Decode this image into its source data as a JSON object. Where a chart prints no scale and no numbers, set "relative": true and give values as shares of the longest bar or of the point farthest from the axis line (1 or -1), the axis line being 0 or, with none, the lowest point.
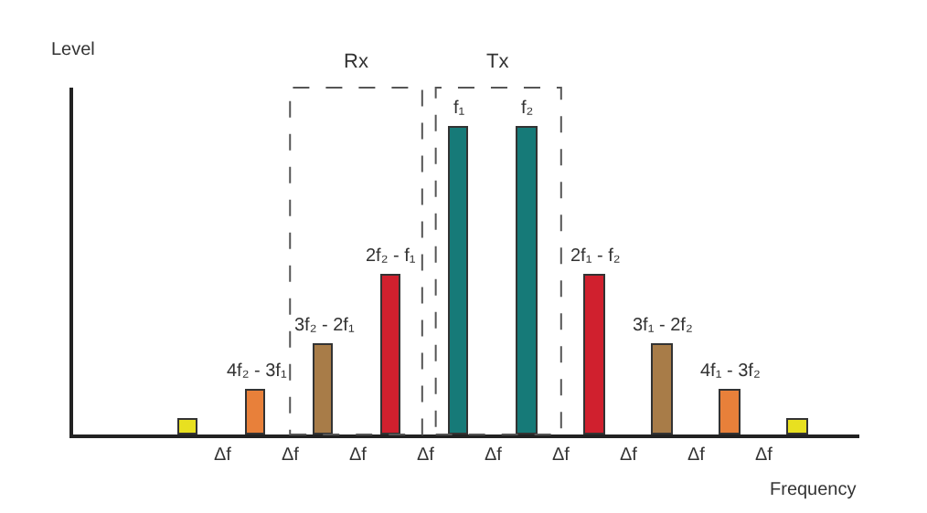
{
  "chart_data": {
    "type": "bar",
    "relative": true,
    "xlabel": "Frequency",
    "ylabel": "Level",
    "categories": [
      null,
      "4f₂ - 3f₁",
      "3f₂ - 2f₁",
      "2f₂ - f₁",
      "f₁",
      "f₂",
      "2f₁ - f₂",
      "3f₁ - 2f₂",
      "4f₁ - 3f₂",
      null
    ],
    "values": [
      0.05,
      0.14,
      0.29,
      0.52,
      1,
      1,
      0.52,
      0.29,
      0.14,
      0.05
    ],
    "colors": [
      "#e8e020",
      "#e8803a",
      "#a87c48",
      "#d0202e",
      "#167a78",
      "#167a78",
      "#d0202e",
      "#a87c48",
      "#e8803a",
      "#e8e020"
    ],
    "annotations": [
      "Rx",
      "Tx",
      "Δf",
      "Δf",
      "Δf",
      "Δf",
      "Δf",
      "Δf",
      "Δf",
      "Δf",
      "Δf"
    ]
  }
}
